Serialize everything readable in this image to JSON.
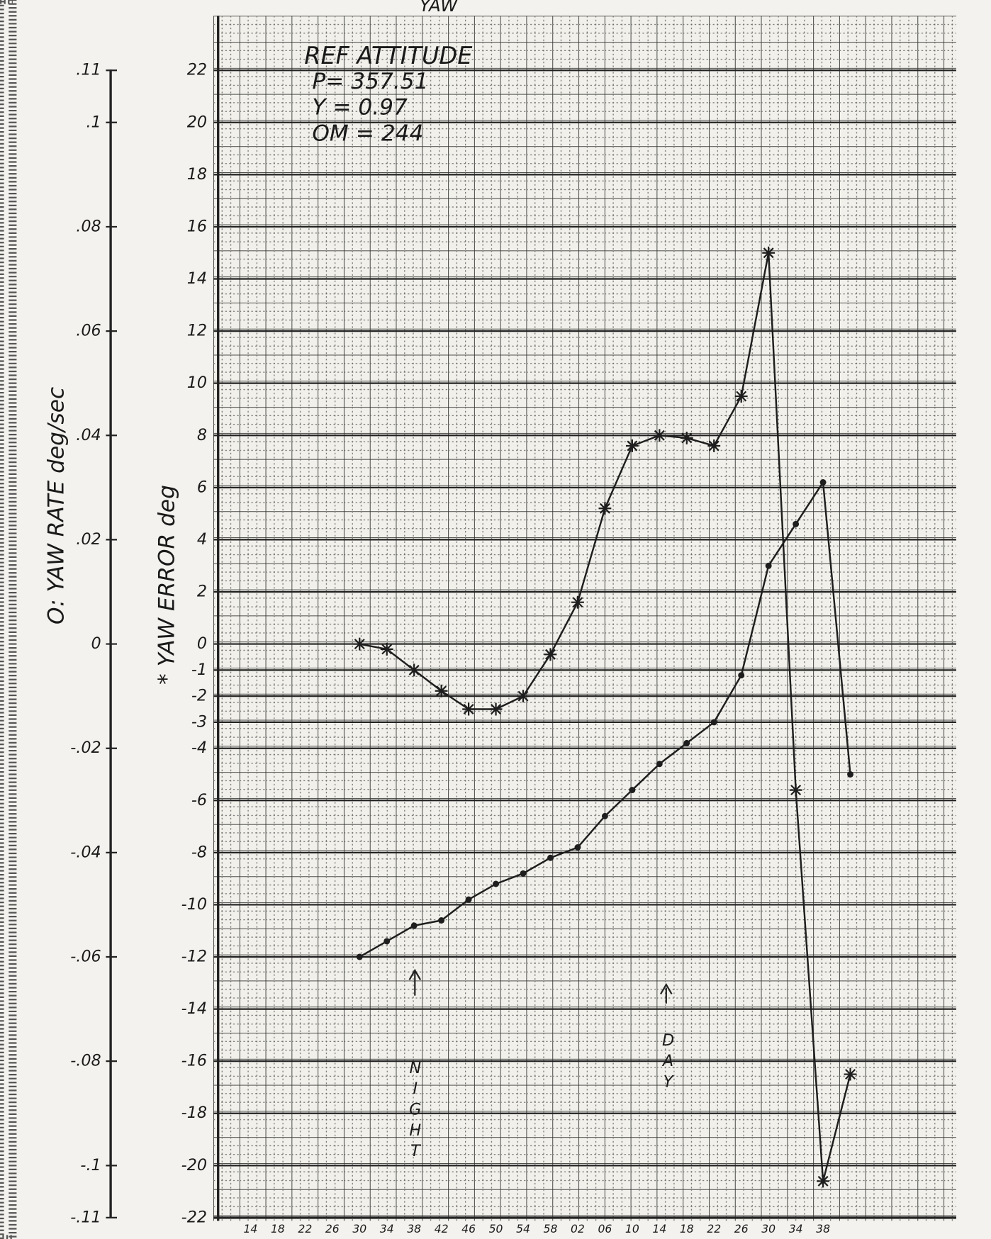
{
  "chart_data": {
    "type": "line",
    "title": "YAW",
    "annotations": [
      "REF ATTITUDE",
      "P= 357.51",
      "Y = 0.97",
      "OM = 244"
    ],
    "markers_text": [
      "NIGHT",
      "DAY"
    ],
    "ylabel": "* YAW ERROR deg",
    "y2label": "O: YAW RATE deg/sec",
    "categories": [
      "14",
      "18",
      "22",
      "26",
      "30",
      "34",
      "38",
      "42",
      "46",
      "50",
      "54",
      "58",
      "02",
      "06",
      "10",
      "14",
      "18",
      "22",
      "26",
      "30",
      "34",
      "38",
      null
    ],
    "ylim": [
      -22,
      22
    ],
    "yticks": [
      22,
      20,
      18,
      16,
      14,
      12,
      10,
      8,
      6,
      4,
      2,
      0,
      -1,
      -2,
      -3,
      -4,
      -6,
      -8,
      -10,
      -12,
      -14,
      -16,
      -18,
      -20,
      -22
    ],
    "y2lim": [
      -0.11,
      0.11
    ],
    "y2ticks": [
      {
        "value": 0.11,
        "label": ".11"
      },
      {
        "value": 0.1,
        "label": ".1"
      },
      {
        "value": 0.08,
        "label": ".08"
      },
      {
        "value": 0.06,
        "label": ".06"
      },
      {
        "value": 0.04,
        "label": ".04"
      },
      {
        "value": 0.02,
        "label": ".02"
      },
      0,
      {
        "value": -0.02,
        "label": "-.02"
      },
      {
        "value": -0.04,
        "label": "-.04"
      },
      {
        "value": -0.06,
        "label": "-.06"
      },
      {
        "value": -0.08,
        "label": "-.08"
      },
      {
        "value": -0.1,
        "label": "-.1"
      },
      {
        "value": -0.11,
        "label": "-.11"
      }
    ],
    "grid": true,
    "series": [
      {
        "marker": "star",
        "color": "#1e1e1e",
        "values": [
          null,
          null,
          null,
          null,
          0,
          -0.2,
          -1.0,
          -1.8,
          -2.5,
          -2.5,
          -2.0,
          -0.4,
          1.6,
          5.2,
          7.6,
          8.0,
          7.9,
          7.6,
          9.5,
          15.0,
          -5.6,
          -20.6,
          -16.5
        ]
      },
      {
        "marker": "circle",
        "color": "#1e1e1e",
        "axis": "y2",
        "values": [
          null,
          null,
          null,
          null,
          -0.06,
          -0.057,
          -0.054,
          -0.053,
          -0.049,
          -0.046,
          -0.044,
          -0.041,
          -0.039,
          -0.033,
          -0.028,
          -0.023,
          -0.019,
          -0.015,
          -0.006,
          0.015,
          0.023,
          0.031,
          -0.025
        ]
      }
    ]
  }
}
